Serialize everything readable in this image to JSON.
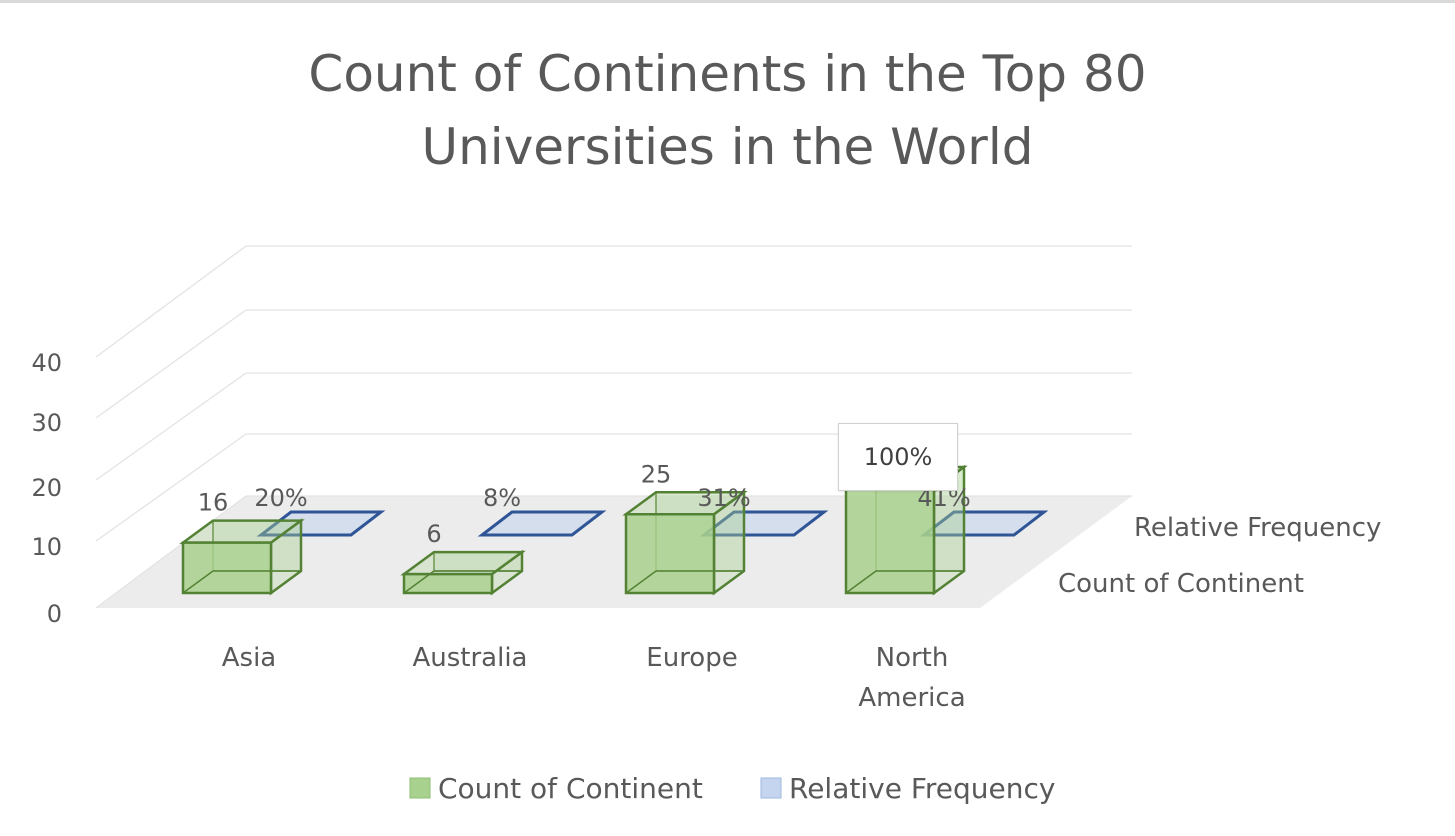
{
  "chart_data": {
    "type": "bar",
    "title": "Count of Continents in the Top 80 Universities in the World",
    "title_lines": [
      "Count of Continents in the Top 80",
      "Universities in the World"
    ],
    "categories": [
      "Asia",
      "Australia",
      "Europe",
      "North America"
    ],
    "category_lines": [
      [
        "Asia"
      ],
      [
        "Australia"
      ],
      [
        "Europe"
      ],
      [
        "North",
        "America"
      ]
    ],
    "series": [
      {
        "name": "Count of Continent",
        "values": [
          16,
          6,
          25,
          33
        ],
        "labels": [
          "16",
          "6",
          "25",
          "33"
        ],
        "color": "#a9d18e",
        "edge": "#548235"
      },
      {
        "name": "Relative Frequency",
        "values": [
          0.2,
          0.08,
          0.31,
          0.41
        ],
        "labels": [
          "20%",
          "8%",
          "31%",
          "41%"
        ],
        "color": "#c5d5ef",
        "edge": "#2f5597"
      }
    ],
    "yticks": [
      "0",
      "10",
      "20",
      "30",
      "40"
    ],
    "ylim": [
      0,
      40
    ],
    "depth_axis": [
      "Count of Continent",
      "Relative Frequency"
    ],
    "legend_position": "bottom",
    "grid": true,
    "tooltip": "100%"
  }
}
